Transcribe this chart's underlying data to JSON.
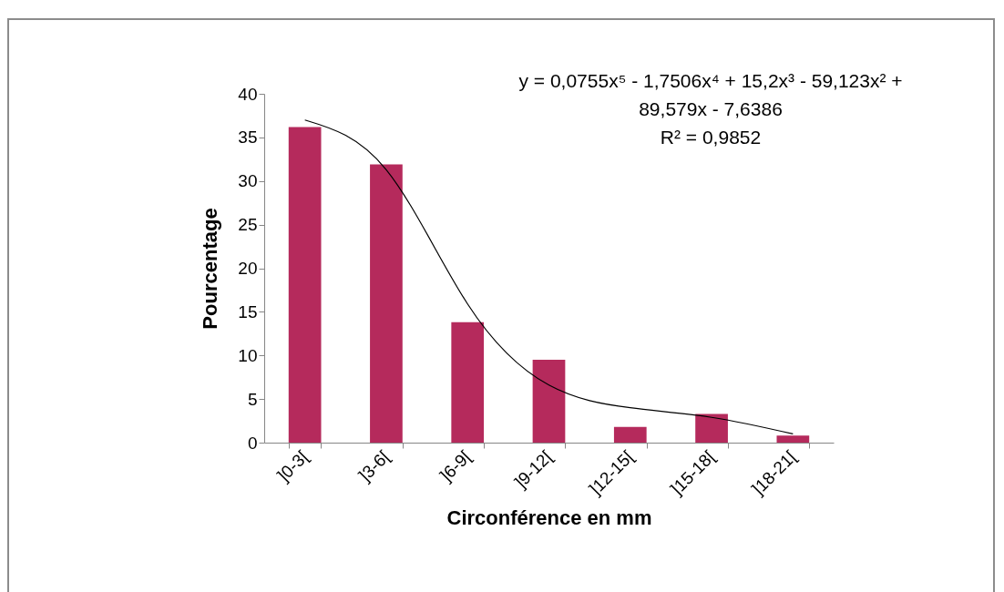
{
  "chart_data": {
    "type": "bar",
    "xlabel": "Circonférence en mm",
    "ylabel": "Pourcentage",
    "categories": [
      "]0-3[",
      "]3-6[",
      "]6-9[",
      "]9-12[",
      "]12-15[",
      "]15-18[",
      "]18-21["
    ],
    "series": [
      {
        "color": "#b52a5c",
        "values": [
          36.2,
          31.9,
          13.8,
          9.5,
          1.8,
          3.3,
          0.8
        ]
      },
      {
        "type": "line",
        "color": "#000000",
        "values": [
          37.0,
          31.3,
          15.9,
          6.6,
          4.0,
          2.9,
          1.0
        ]
      }
    ],
    "ylim": [
      0,
      40
    ],
    "yticks": [
      0,
      5,
      10,
      15,
      20,
      25,
      30,
      35,
      40
    ],
    "grid": false,
    "annotations": [
      "y = 0,0755x⁵ - 1,7506x⁴ + 15,2x³ - 59,123x² +",
      "89,579x - 7,6386",
      "R² = 0,9852"
    ]
  }
}
